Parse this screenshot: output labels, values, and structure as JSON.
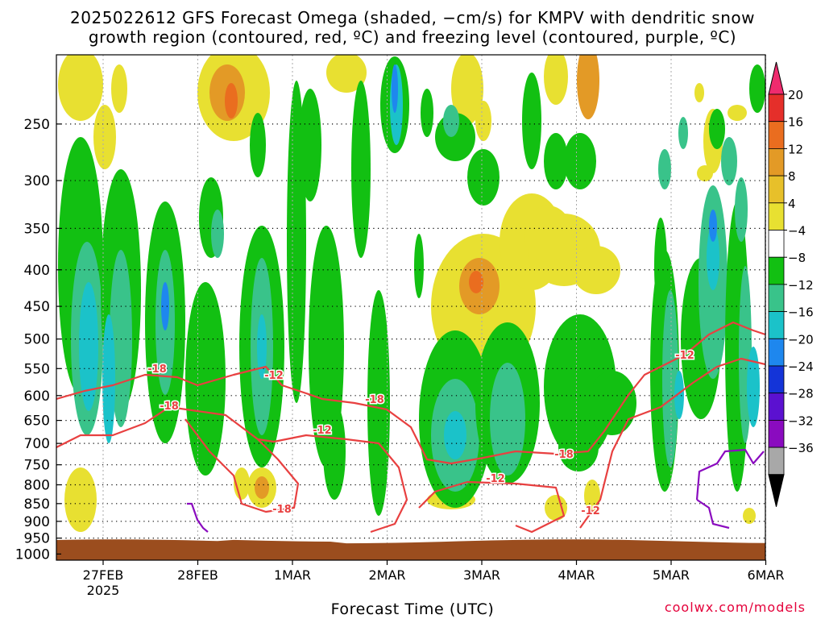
{
  "chart_data": {
    "type": "heatmap",
    "title": "2025022612 GFS Forecast Omega (shaded, −cm/s) for KMPV with dendritic snow",
    "subtitle": "growth region (contoured, red, ºC) and freezing level (contoured, purple, ºC)",
    "xlabel": "Forecast Time (UTC)",
    "ylabel": "",
    "credit": "coolwx.com/models",
    "x_ticks": [
      "27FEB",
      "28FEB",
      "1MAR",
      "2MAR",
      "3MAR",
      "4MAR",
      "5MAR",
      "6MAR"
    ],
    "x_year_label": "2025",
    "x_range": [
      "2025-02-26 12Z",
      "2025-03-06 00Z"
    ],
    "y_ticks": [
      250,
      300,
      350,
      400,
      450,
      500,
      550,
      600,
      650,
      700,
      750,
      800,
      850,
      900,
      950,
      1000
    ],
    "y_range": [
      1020,
      200
    ],
    "y_scale": "log",
    "grid": true,
    "colorbar": {
      "labels": [
        "20",
        "16",
        "12",
        "8",
        "4",
        "−4",
        "−8",
        "−12",
        "−16",
        "−20",
        "−24",
        "−28",
        "−32",
        "−36"
      ],
      "colors": [
        "#ef2b6e",
        "#e52f2a",
        "#ea6d1f",
        "#e39a26",
        "#e7c02a",
        "#e8e031",
        "#ffffff",
        "#12c012",
        "#39c38a",
        "#1bc2c9",
        "#1e87ee",
        "#1434d8",
        "#5b11d0",
        "#8a0bbf",
        "#a8a8a8",
        "#000000"
      ]
    },
    "contours": {
      "dgz_red_labels": [
        "-18",
        "-12",
        "-18",
        "-12",
        "-18",
        "-12",
        "-18",
        "-12",
        "-18",
        "-12"
      ],
      "dgz_color": "#e84040",
      "freezing_color": "#8a0bbf"
    },
    "terrain_color": "#9b4d1e"
  }
}
